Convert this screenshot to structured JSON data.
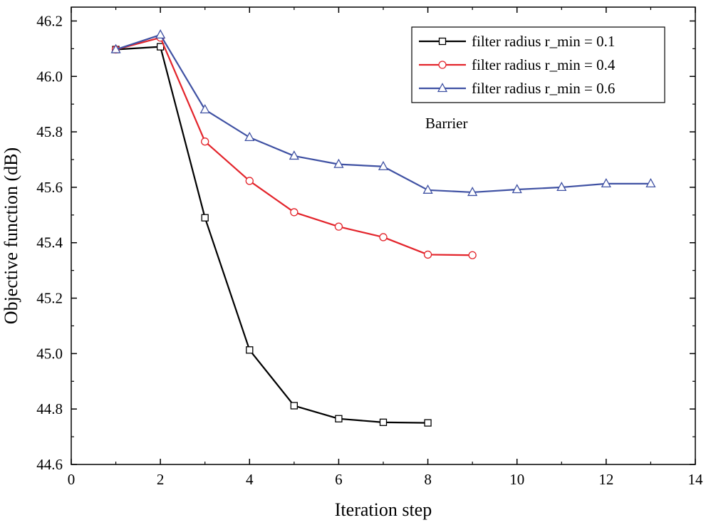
{
  "chart_data": {
    "type": "line",
    "title": "",
    "xlabel": "Iteration step",
    "ylabel": "Objective function (dB)",
    "xlim": [
      0,
      14
    ],
    "ylim": [
      44.6,
      46.25
    ],
    "xticks": [
      0,
      2,
      4,
      6,
      8,
      10,
      12,
      14
    ],
    "xtick_labels": [
      "0",
      "2",
      "4",
      "6",
      "8",
      "10",
      "12",
      "14"
    ],
    "yticks": [
      44.6,
      44.8,
      45.0,
      45.2,
      45.4,
      45.6,
      45.8,
      46.0,
      46.2
    ],
    "ytick_labels": [
      "44.6",
      "44.8",
      "45.0",
      "45.2",
      "45.4",
      "45.6",
      "45.8",
      "46.0",
      "46.2"
    ],
    "grid": false,
    "legend_position": "top-right",
    "annotation": "Barrier",
    "series": [
      {
        "name": "filter radius r_min = 0.1",
        "color": "#000000",
        "marker": "square",
        "x": [
          1,
          2,
          3,
          4,
          5,
          6,
          7,
          8
        ],
        "values": [
          46.097,
          46.107,
          45.49,
          45.013,
          44.812,
          44.765,
          44.752,
          44.75
        ]
      },
      {
        "name": "filter radius r_min = 0.4",
        "color": "#e3242b",
        "marker": "circle",
        "x": [
          1,
          2,
          3,
          4,
          5,
          6,
          7,
          8,
          9
        ],
        "values": [
          46.097,
          46.14,
          45.765,
          45.623,
          45.51,
          45.458,
          45.42,
          45.357,
          45.355
        ]
      },
      {
        "name": "filter radius r_min = 0.6",
        "color": "#3f51a3",
        "marker": "triangle",
        "x": [
          1,
          2,
          3,
          4,
          5,
          6,
          7,
          8,
          9,
          10,
          11,
          12,
          13
        ],
        "values": [
          46.097,
          46.15,
          45.88,
          45.78,
          45.713,
          45.683,
          45.675,
          45.59,
          45.582,
          45.592,
          45.6,
          45.613,
          45.613
        ]
      }
    ]
  }
}
